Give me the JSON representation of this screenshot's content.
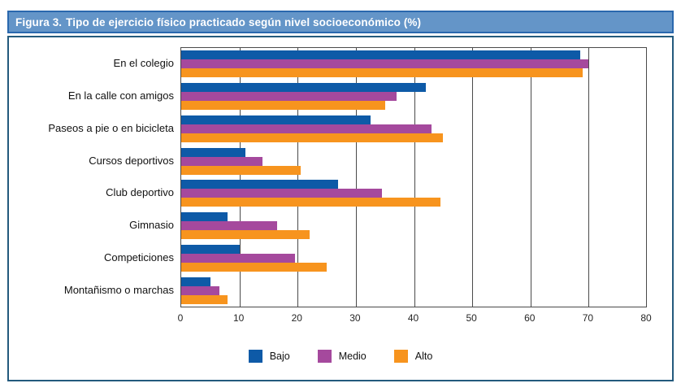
{
  "figure": {
    "title_prefix": "Figura 3.",
    "title_rest": "Tipo de ejercicio físico practicado según nivel socioeconómico (%)"
  },
  "colors": {
    "bajo": "#0E5AA7",
    "medio": "#A5499D",
    "alto": "#F7941E",
    "title_bar_bg": "#6495C8",
    "title_bar_border": "#2A68AE",
    "chart_box_border": "#235A7D",
    "gridline": "#4A4A4A"
  },
  "chart_data": {
    "type": "bar",
    "orientation": "horizontal",
    "title": "Figura 3. Tipo de ejercicio físico practicado según nivel socioeconómico (%)",
    "categories": [
      "En el colegio",
      "En la calle con amigos",
      "Paseos a pie o en bicicleta",
      "Cursos deportivos",
      "Club deportivo",
      "Gimnasio",
      "Competiciones",
      "Montañismo o marchas"
    ],
    "series": [
      {
        "name": "Bajo",
        "color": "#0E5AA7",
        "values": [
          68.5,
          42,
          32.5,
          11,
          27,
          8,
          10,
          5
        ]
      },
      {
        "name": "Medio",
        "color": "#A5499D",
        "values": [
          70,
          37,
          43,
          14,
          34.5,
          16.5,
          19.5,
          6.5
        ]
      },
      {
        "name": "Alto",
        "color": "#F7941E",
        "values": [
          69,
          35,
          45,
          20.5,
          44.5,
          22,
          25,
          8
        ]
      }
    ],
    "xlabel": "",
    "ylabel": "",
    "xlim": [
      0,
      80
    ],
    "xticks": [
      0,
      10,
      20,
      30,
      40,
      50,
      60,
      70,
      80
    ],
    "grid": true,
    "legend_position": "bottom"
  }
}
